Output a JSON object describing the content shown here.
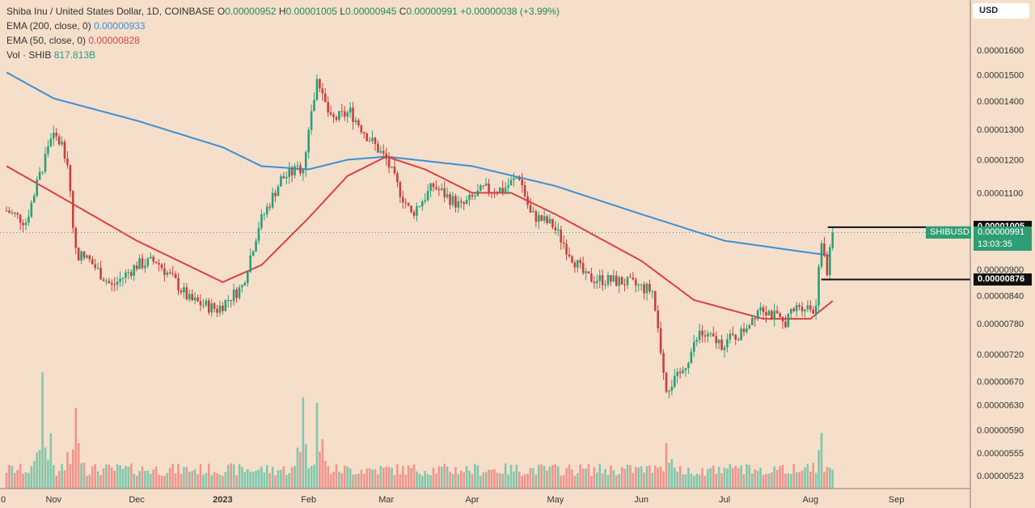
{
  "legend": {
    "title": "Shiba Inu / United States Dollar, 1D, COINBASE",
    "o_label": "O",
    "o_value": "0.00000952",
    "h_label": "H",
    "h_value": "0.00001005",
    "l_label": "L",
    "l_value": "0.00000945",
    "c_label": "C",
    "c_value": "0.00000991",
    "change": "+0.00000038 (+3.99%)",
    "ema200_label": "EMA (200, close, 0)",
    "ema200_value": "0.00000933",
    "ema50_label": "EMA (50, close, 0)",
    "ema50_value": "0.00000828",
    "vol_label": "Vol · SHIB",
    "vol_value": "817.813B"
  },
  "currency_button": "USD",
  "price_tags": {
    "high": "0.00001005",
    "symbol": "SHIBUSD",
    "last": "0.00000991",
    "countdown": "13:03:35",
    "low": "0.00000876"
  },
  "colors": {
    "background": "#f6dfca",
    "up": "#26a17b",
    "down": "#c9403f",
    "ema200": "#3a8fd8",
    "ema50": "#de4040",
    "vol_up": "#7fc8ae",
    "vol_down": "#f0958e"
  },
  "chart_data": {
    "type": "candlestick",
    "title": "Shiba Inu / United States Dollar, 1D, COINBASE",
    "x_ticks": [
      "0",
      "Nov",
      "Dec",
      "2023",
      "Feb",
      "Mar",
      "Apr",
      "May",
      "Jun",
      "Jul",
      "Aug",
      "Sep"
    ],
    "y_ticks": [
      "0.00001600",
      "0.00001500",
      "0.00001400",
      "0.00001300",
      "0.00001200",
      "0.00001100",
      "0.00000900",
      "0.00000840",
      "0.00000780",
      "0.00000720",
      "0.00000670",
      "0.00000630",
      "0.00000590",
      "0.00000555",
      "0.00000523"
    ],
    "y_tick_values": [
      1.6e-05,
      1.5e-05,
      1.4e-05,
      1.3e-05,
      1.2e-05,
      1.1e-05,
      9e-06,
      8.4e-06,
      7.8e-06,
      7.2e-06,
      6.7e-06,
      6.3e-06,
      5.9e-06,
      5.55e-06,
      5.23e-06
    ],
    "y_scale": "log",
    "ylim": [
      5.1e-06,
      1.75e-05
    ],
    "x_range_dates": [
      "2022-10-15",
      "2023-09-30"
    ],
    "month_starts": [
      "2022-10-01",
      "2022-11-01",
      "2022-12-01",
      "2023-01-01",
      "2023-02-01",
      "2023-03-01",
      "2023-04-01",
      "2023-05-01",
      "2023-06-01",
      "2023-07-01",
      "2023-08-01",
      "2023-09-01"
    ],
    "price_anchors": [
      {
        "date": "2022-10-15",
        "close": 1.05e-05
      },
      {
        "date": "2022-10-22",
        "close": 1.02e-05
      },
      {
        "date": "2022-10-28",
        "close": 1.18e-05
      },
      {
        "date": "2022-10-31",
        "close": 1.28e-05
      },
      {
        "date": "2022-11-04",
        "close": 1.25e-05
      },
      {
        "date": "2022-11-06",
        "close": 1.2e-05
      },
      {
        "date": "2022-11-09",
        "close": 9.4e-06
      },
      {
        "date": "2022-11-14",
        "close": 9.2e-06
      },
      {
        "date": "2022-11-22",
        "close": 8.6e-06
      },
      {
        "date": "2022-12-01",
        "close": 9.1e-06
      },
      {
        "date": "2022-12-08",
        "close": 9.2e-06
      },
      {
        "date": "2022-12-15",
        "close": 8.7e-06
      },
      {
        "date": "2022-12-20",
        "close": 8.3e-06
      },
      {
        "date": "2022-12-30",
        "close": 8.1e-06
      },
      {
        "date": "2023-01-08",
        "close": 8.6e-06
      },
      {
        "date": "2023-01-14",
        "close": 1.01e-05
      },
      {
        "date": "2023-01-22",
        "close": 1.14e-05
      },
      {
        "date": "2023-01-30",
        "close": 1.18e-05
      },
      {
        "date": "2023-02-04",
        "close": 1.48e-05
      },
      {
        "date": "2023-02-09",
        "close": 1.33e-05
      },
      {
        "date": "2023-02-16",
        "close": 1.36e-05
      },
      {
        "date": "2023-02-22",
        "close": 1.28e-05
      },
      {
        "date": "2023-03-01",
        "close": 1.2e-05
      },
      {
        "date": "2023-03-05",
        "close": 1.12e-05
      },
      {
        "date": "2023-03-10",
        "close": 1.04e-05
      },
      {
        "date": "2023-03-18",
        "close": 1.12e-05
      },
      {
        "date": "2023-03-28",
        "close": 1.06e-05
      },
      {
        "date": "2023-04-05",
        "close": 1.11e-05
      },
      {
        "date": "2023-04-12",
        "close": 1.11e-05
      },
      {
        "date": "2023-04-18",
        "close": 1.15e-05
      },
      {
        "date": "2023-04-22",
        "close": 1.04e-05
      },
      {
        "date": "2023-04-30",
        "close": 1.01e-05
      },
      {
        "date": "2023-05-07",
        "close": 9.3e-06
      },
      {
        "date": "2023-05-12",
        "close": 8.8e-06
      },
      {
        "date": "2023-05-26",
        "close": 8.7e-06
      },
      {
        "date": "2023-06-05",
        "close": 8.5e-06
      },
      {
        "date": "2023-06-10",
        "close": 6.6e-06
      },
      {
        "date": "2023-06-15",
        "close": 6.8e-06
      },
      {
        "date": "2023-06-22",
        "close": 7.6e-06
      },
      {
        "date": "2023-06-30",
        "close": 7.4e-06
      },
      {
        "date": "2023-07-07",
        "close": 7.6e-06
      },
      {
        "date": "2023-07-14",
        "close": 8.2e-06
      },
      {
        "date": "2023-07-22",
        "close": 7.8e-06
      },
      {
        "date": "2023-07-28",
        "close": 8.2e-06
      },
      {
        "date": "2023-08-03",
        "close": 8.1e-06
      },
      {
        "date": "2023-08-05",
        "close": 9.8e-06
      },
      {
        "date": "2023-08-07",
        "close": 8.9e-06
      },
      {
        "date": "2023-08-08",
        "close": 9.4e-06
      },
      {
        "date": "2023-08-09",
        "close": 9.91e-06
      }
    ],
    "ema200": [
      {
        "date": "2022-10-15",
        "value": 1.51e-05
      },
      {
        "date": "2022-11-01",
        "value": 1.41e-05
      },
      {
        "date": "2022-12-01",
        "value": 1.33e-05
      },
      {
        "date": "2023-01-01",
        "value": 1.24e-05
      },
      {
        "date": "2023-01-15",
        "value": 1.18e-05
      },
      {
        "date": "2023-02-01",
        "value": 1.17e-05
      },
      {
        "date": "2023-02-15",
        "value": 1.2e-05
      },
      {
        "date": "2023-03-01",
        "value": 1.21e-05
      },
      {
        "date": "2023-04-01",
        "value": 1.18e-05
      },
      {
        "date": "2023-05-01",
        "value": 1.12e-05
      },
      {
        "date": "2023-06-01",
        "value": 1.04e-05
      },
      {
        "date": "2023-07-01",
        "value": 9.7e-06
      },
      {
        "date": "2023-08-08",
        "value": 9.33e-06
      }
    ],
    "ema50": [
      {
        "date": "2022-10-15",
        "value": 1.18e-05
      },
      {
        "date": "2022-11-01",
        "value": 1.1e-05
      },
      {
        "date": "2022-12-01",
        "value": 9.7e-06
      },
      {
        "date": "2023-01-01",
        "value": 8.7e-06
      },
      {
        "date": "2023-01-15",
        "value": 9.1e-06
      },
      {
        "date": "2023-02-01",
        "value": 1.03e-05
      },
      {
        "date": "2023-02-15",
        "value": 1.15e-05
      },
      {
        "date": "2023-03-01",
        "value": 1.21e-05
      },
      {
        "date": "2023-03-15",
        "value": 1.17e-05
      },
      {
        "date": "2023-04-01",
        "value": 1.1e-05
      },
      {
        "date": "2023-04-15",
        "value": 1.1e-05
      },
      {
        "date": "2023-05-01",
        "value": 1.04e-05
      },
      {
        "date": "2023-06-01",
        "value": 9.2e-06
      },
      {
        "date": "2023-06-20",
        "value": 8.3e-06
      },
      {
        "date": "2023-07-15",
        "value": 7.9e-06
      },
      {
        "date": "2023-08-01",
        "value": 7.9e-06
      },
      {
        "date": "2023-08-09",
        "value": 8.28e-06
      }
    ],
    "volume_spikes_billion": [
      {
        "date": "2022-10-28",
        "value": 2300
      },
      {
        "date": "2022-11-09",
        "value": 1600
      },
      {
        "date": "2023-02-04",
        "value": 1700
      },
      {
        "date": "2023-01-30",
        "value": 1800
      },
      {
        "date": "2023-06-10",
        "value": 900
      },
      {
        "date": "2023-08-05",
        "value": 1100
      }
    ],
    "levels": {
      "high": 1.005e-05,
      "low": 8.76e-06,
      "last": 9.91e-06
    }
  }
}
